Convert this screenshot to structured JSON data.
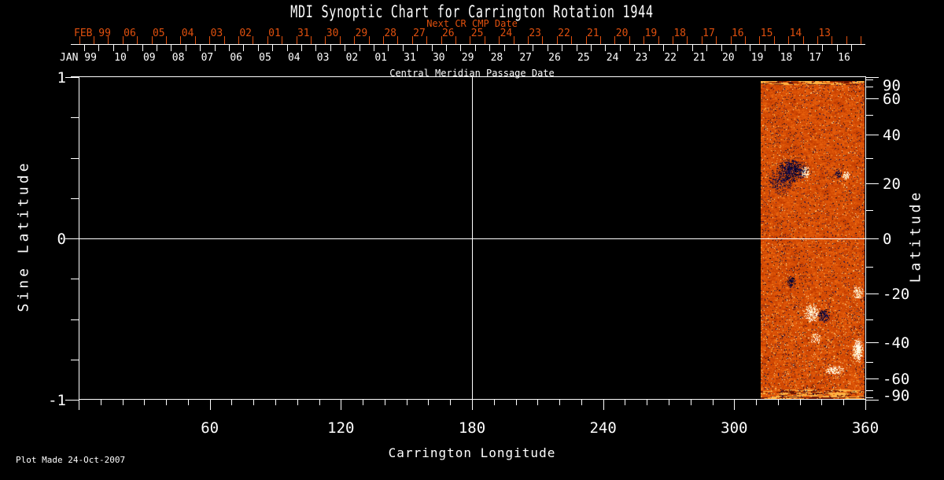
{
  "title": "MDI Synoptic Chart for Carrington Rotation 1944",
  "footer": "Plot Made 24-Oct-2007",
  "next_cr_axis": {
    "label": "Next CR CMP Date",
    "month_label": "FEB 99",
    "color": "#e0500e",
    "dates": [
      "06",
      "05",
      "04",
      "03",
      "02",
      "01",
      "31",
      "30",
      "29",
      "28",
      "27",
      "26",
      "25",
      "24",
      "23",
      "22",
      "21",
      "20",
      "19",
      "18",
      "17",
      "16",
      "15",
      "14",
      "13"
    ]
  },
  "cmp_axis": {
    "label": "Central Meridian Passage Date",
    "month_label": "JAN 99",
    "dates": [
      "10",
      "09",
      "08",
      "07",
      "06",
      "05",
      "04",
      "03",
      "02",
      "01",
      "31",
      "30",
      "29",
      "28",
      "27",
      "26",
      "25",
      "24",
      "23",
      "22",
      "21",
      "20",
      "19",
      "18",
      "17",
      "16"
    ]
  },
  "left_axis": {
    "label": "Sine Latitude",
    "ticks": [
      1,
      0,
      -1
    ],
    "minor_step": 0.25,
    "range": [
      -1,
      1
    ]
  },
  "right_axis": {
    "label": "Latitude",
    "ticks": [
      90,
      60,
      40,
      20,
      0,
      -20,
      -40,
      -60,
      -90
    ],
    "minor_ticks": [
      80,
      70,
      50,
      30,
      10,
      -10,
      -30,
      -50,
      -70,
      -80
    ]
  },
  "bottom_axis": {
    "label": "Carrington Longitude",
    "ticks": [
      60,
      120,
      180,
      240,
      300,
      360
    ],
    "minor_step": 10,
    "range": [
      0,
      360
    ]
  },
  "chart_data": {
    "type": "heatmap",
    "title": "MDI Synoptic Chart for Carrington Rotation 1944",
    "xlabel": "Carrington Longitude",
    "ylabel": "Sine Latitude",
    "xlim": [
      0,
      360
    ],
    "ylim": [
      -1,
      1
    ],
    "grid": false,
    "background": "#000000",
    "crosshair": {
      "longitude": 180,
      "sine_latitude": 0,
      "color": "#ffffff"
    },
    "data_coverage": {
      "longitude_range": [
        312,
        360
      ],
      "note": "magnetogram data only in this longitude band; remainder of map is empty black"
    },
    "palette": {
      "base": [
        "#8f2100",
        "#b33300",
        "#cc4503",
        "#de5508",
        "#ec670f",
        "#f67d1b",
        "#fd9b33"
      ],
      "thresholds": [
        0.1,
        0.28,
        0.48,
        0.66,
        0.82,
        0.93
      ],
      "negative": [
        "#0b0533",
        "#1a0f4d",
        "#000016",
        "#221347"
      ],
      "positive": [
        "#ffffff",
        "#fff4cf",
        "#ffe9b0"
      ],
      "flecks": [
        "#ffd96e",
        "#ffefad",
        "#ffb13c"
      ]
    },
    "features": [
      {
        "lon": 321.0,
        "lat": 21.0,
        "polarity": "negative",
        "rlon": 6.0,
        "rlat": 6.0,
        "strength": 0.55
      },
      {
        "lon": 326.0,
        "lat": 25.0,
        "polarity": "negative",
        "rlon": 8.0,
        "rlat": 5.0,
        "strength": 0.9
      },
      {
        "lon": 332.0,
        "lat": 24.5,
        "polarity": "positive",
        "rlon": 2.6,
        "rlat": 3.0,
        "strength": 1.0
      },
      {
        "lon": 351.0,
        "lat": 23.0,
        "polarity": "positive",
        "rlon": 2.0,
        "rlat": 2.0,
        "strength": 1.0
      },
      {
        "lon": 347.5,
        "lat": 23.5,
        "polarity": "negative",
        "rlon": 1.8,
        "rlat": 1.8,
        "strength": 0.8
      },
      {
        "lon": 326.0,
        "lat": -15.5,
        "polarity": "negative",
        "rlon": 2.5,
        "rlat": 2.5,
        "strength": 0.85
      },
      {
        "lon": 341.0,
        "lat": -28.5,
        "polarity": "negative",
        "rlon": 3.2,
        "rlat": 3.0,
        "strength": 0.9
      },
      {
        "lon": 335.5,
        "lat": -27.5,
        "polarity": "positive",
        "rlon": 4.5,
        "rlat": 4.0,
        "strength": 0.7
      },
      {
        "lon": 356.5,
        "lat": -19.5,
        "polarity": "positive",
        "rlon": 2.5,
        "rlat": 3.0,
        "strength": 0.8
      },
      {
        "lon": 356.5,
        "lat": -44.0,
        "polarity": "positive",
        "rlon": 2.8,
        "rlat": 5.0,
        "strength": 0.95
      },
      {
        "lon": 345.5,
        "lat": -54.5,
        "polarity": "positive",
        "rlon": 5.0,
        "rlat": 2.0,
        "strength": 0.8
      },
      {
        "lon": 337.0,
        "lat": -38.0,
        "polarity": "positive",
        "rlon": 3.0,
        "rlat": 2.5,
        "strength": 0.5
      }
    ]
  }
}
